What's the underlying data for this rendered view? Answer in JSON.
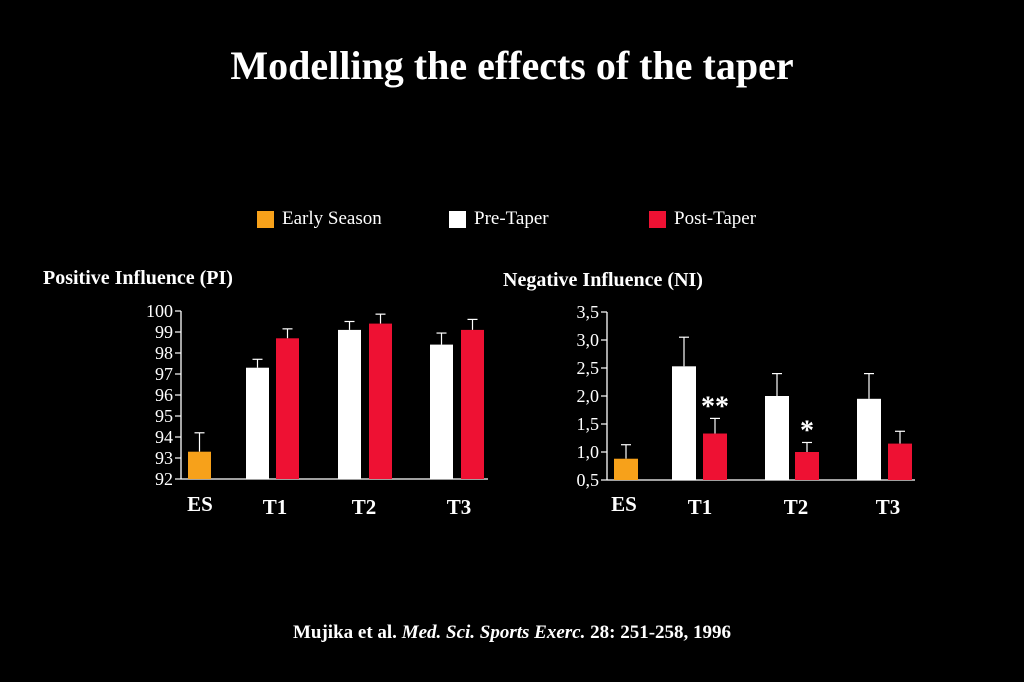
{
  "title": "Modelling the effects of the taper",
  "colors": {
    "early": "#f7a11a",
    "pre": "#ffffff",
    "post": "#ee1133",
    "axis": "#ffffff",
    "background": "#000000"
  },
  "legend": [
    {
      "label": "Early Season",
      "color": "#f7a11a"
    },
    {
      "label": "Pre-Taper",
      "color": "#ffffff"
    },
    {
      "label": "Post-Taper",
      "color": "#ee1133"
    }
  ],
  "chart_data": [
    {
      "type": "bar",
      "title": "Positive Influence (PI)",
      "categories": [
        "ES",
        "T1",
        "T2",
        "T3"
      ],
      "ylim": [
        92,
        100
      ],
      "yticks": [
        "92",
        "93",
        "94",
        "95",
        "96",
        "97",
        "98",
        "99",
        "100"
      ],
      "series": [
        {
          "name": "Early Season",
          "values": [
            93.3,
            null,
            null,
            null
          ],
          "errors": [
            0.9,
            null,
            null,
            null
          ]
        },
        {
          "name": "Pre-Taper",
          "values": [
            null,
            97.3,
            99.1,
            98.4
          ],
          "errors": [
            null,
            0.4,
            0.4,
            0.55
          ]
        },
        {
          "name": "Post-Taper",
          "values": [
            null,
            98.7,
            99.4,
            99.1
          ],
          "errors": [
            null,
            0.45,
            0.45,
            0.5
          ]
        }
      ],
      "annotations": []
    },
    {
      "type": "bar",
      "title": "Negative Influence (NI)",
      "categories": [
        "ES",
        "T1",
        "T2",
        "T3"
      ],
      "ylim": [
        0.5,
        3.5
      ],
      "yticks": [
        "0,5",
        "1,0",
        "1,5",
        "2,0",
        "2,5",
        "3,0",
        "3,5"
      ],
      "series": [
        {
          "name": "Early Season",
          "values": [
            0.88,
            null,
            null,
            null
          ],
          "errors": [
            0.25,
            null,
            null,
            null
          ]
        },
        {
          "name": "Pre-Taper",
          "values": [
            null,
            2.53,
            2.0,
            1.95
          ],
          "errors": [
            null,
            0.52,
            0.4,
            0.45
          ]
        },
        {
          "name": "Post-Taper",
          "values": [
            null,
            1.33,
            1.0,
            1.15
          ],
          "errors": [
            null,
            0.27,
            0.17,
            0.22
          ]
        }
      ],
      "annotations": [
        {
          "category": "T1",
          "text": "**"
        },
        {
          "category": "T2",
          "text": "*"
        }
      ]
    }
  ],
  "citation": {
    "authors": "Mujika et al. ",
    "journal": "Med. Sci. Sports Exerc.",
    "details": " 28: 251-258, 1996"
  }
}
